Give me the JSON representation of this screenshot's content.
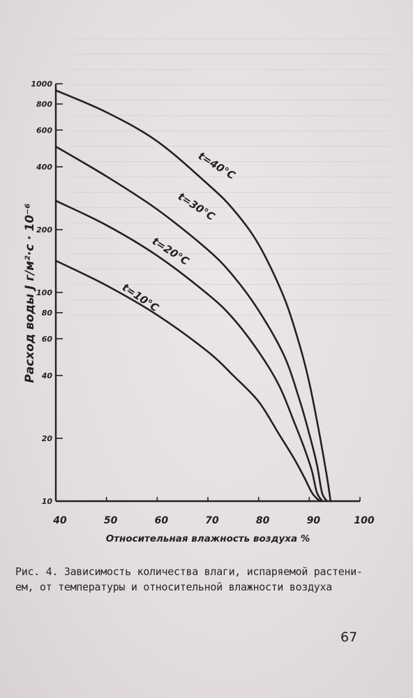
{
  "chart_data": {
    "type": "line",
    "xlabel": "Относительная влажность воздуха %",
    "ylabel": "Расход воды J г/м²·с · 10⁻⁶",
    "xlim": [
      40,
      100
    ],
    "ylim": [
      10,
      1000
    ],
    "y_scale": "log",
    "x_ticks": [
      "40",
      "50",
      "60",
      "70",
      "80",
      "90",
      "100"
    ],
    "y_ticks": [
      {
        "value": 10,
        "label": "10"
      },
      {
        "value": 20,
        "label": "20"
      },
      {
        "value": 40,
        "label": "40"
      },
      {
        "value": 60,
        "label": "60"
      },
      {
        "value": 80,
        "label": "80"
      },
      {
        "value": 100,
        "label": "100"
      },
      {
        "value": 200,
        "label": "200"
      },
      {
        "value": 400,
        "label": "400"
      },
      {
        "value": 600,
        "label": "600"
      },
      {
        "value": 800,
        "label": "800"
      },
      {
        "value": 1000,
        "label": "1000"
      }
    ],
    "grid": false,
    "series": [
      {
        "name": "t=40°C",
        "x": [
          40,
          50,
          60,
          70,
          75,
          80,
          85,
          88,
          90,
          92,
          93.5,
          94.2
        ],
        "y": [
          930,
          730,
          530,
          330,
          250,
          170,
          95,
          57,
          37,
          21,
          13,
          10
        ]
      },
      {
        "name": "t=30°C",
        "x": [
          40,
          50,
          60,
          70,
          75,
          80,
          85,
          88,
          90,
          91.5,
          92.5,
          93.5
        ],
        "y": [
          500,
          360,
          250,
          160,
          120,
          82,
          50,
          31,
          21,
          15,
          11,
          10
        ]
      },
      {
        "name": "t=20°C",
        "x": [
          40,
          50,
          60,
          70,
          75,
          80,
          84,
          87,
          89,
          90.5,
          91.5,
          92.6
        ],
        "y": [
          275,
          210,
          150,
          98,
          75,
          52,
          36,
          24,
          18,
          14,
          11,
          10
        ]
      },
      {
        "name": "t=10°C",
        "x": [
          40,
          50,
          60,
          70,
          75,
          80,
          84,
          87,
          89,
          90.5,
          91.5,
          92.2
        ],
        "y": [
          142,
          108,
          78,
          52,
          40,
          30,
          21,
          16,
          13,
          11,
          10.3,
          10
        ]
      }
    ]
  },
  "caption": {
    "line1": "Рис. 4. Зависимость количества влаги, испаряемой растени-",
    "line2": "ем, от температуры и относительной влажности воздуха"
  },
  "page_number": "67",
  "colors": {
    "ink": "#232023",
    "paper": "#e6e1e5"
  }
}
